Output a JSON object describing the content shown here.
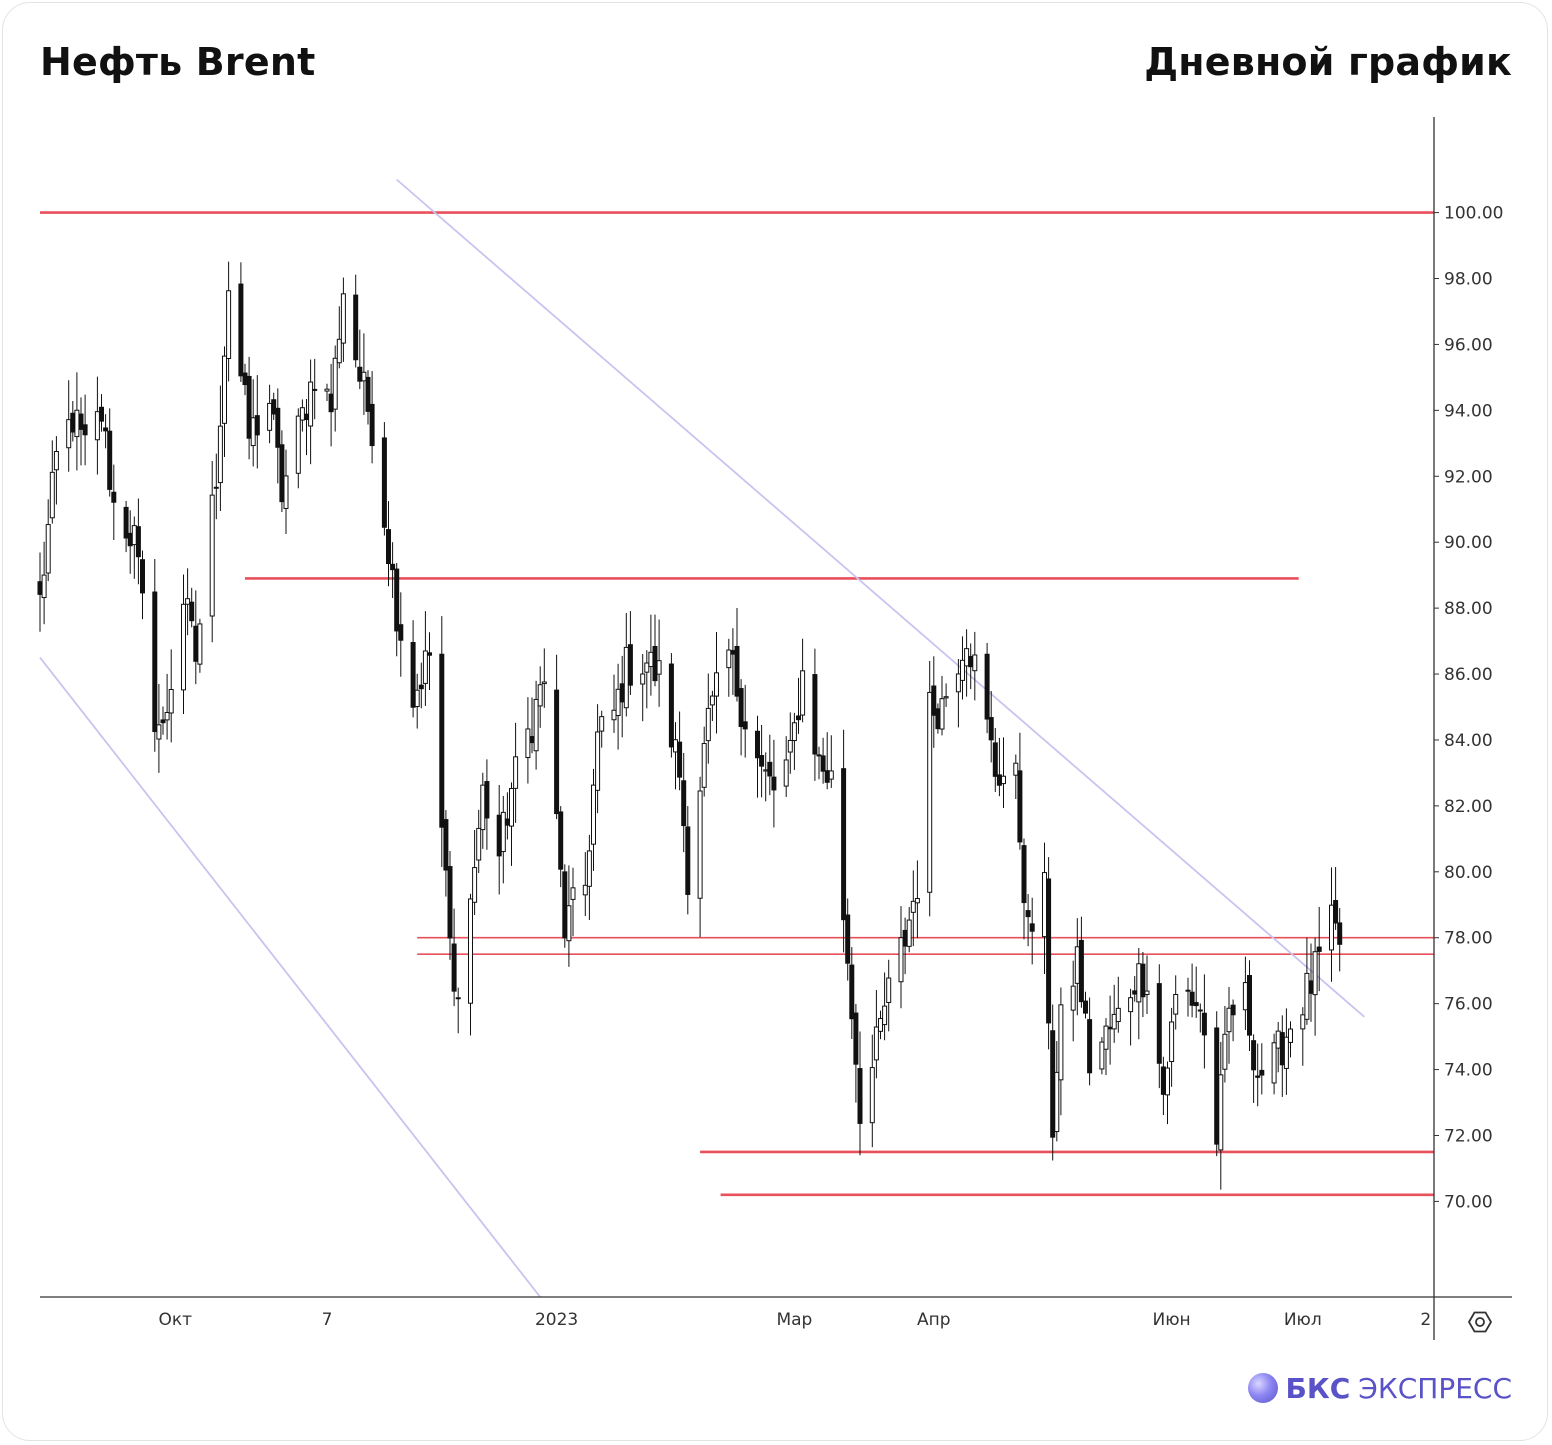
{
  "header": {
    "title_left": "Нефть Brent",
    "title_right": "Дневной график"
  },
  "logo": {
    "brand": "БКС",
    "product": "ЭКСПРЕСС",
    "icon": "bks-sphere-icon"
  },
  "settings_icon": "gear-icon",
  "colors": {
    "level": "#e8505b",
    "channel": "#c8c4f0",
    "candle": "#111111",
    "axis": "#333333",
    "brand": "#5a53c8"
  },
  "chart_data": {
    "type": "candlestick",
    "title": "Нефть Brent",
    "subtitle": "Дневной график",
    "ylim": [
      67.1,
      102.9
    ],
    "xlim": [
      "2022-08-29",
      "2023-08-04"
    ],
    "y_ticks": [
      "100.00",
      "98.00",
      "96.00",
      "94.00",
      "92.00",
      "90.00",
      "88.00",
      "86.00",
      "84.00",
      "82.00",
      "80.00",
      "78.00",
      "76.00",
      "74.00",
      "72.00",
      "70.00"
    ],
    "x_ticks": [
      {
        "label": "Окт",
        "date": "2022-10-01"
      },
      {
        "label": "7",
        "date": "2022-11-07"
      },
      {
        "label": "2023",
        "date": "2023-01-02"
      },
      {
        "label": "Мар",
        "date": "2023-03-01"
      },
      {
        "label": "Апр",
        "date": "2023-04-04"
      },
      {
        "label": "Июн",
        "date": "2023-06-01"
      },
      {
        "label": "Июл",
        "date": "2023-07-03"
      },
      {
        "label": "2",
        "date": "2023-08-02"
      }
    ],
    "levels": [
      {
        "price": 100.0,
        "from": "2022-08-29",
        "to": "2023-08-04",
        "weight": "thick"
      },
      {
        "price": 88.9,
        "from": "2022-10-18",
        "to": "2023-07-02",
        "weight": "thick"
      },
      {
        "price": 78.0,
        "from": "2022-11-29",
        "to": "2023-08-04",
        "weight": "thin"
      },
      {
        "price": 77.5,
        "from": "2022-11-29",
        "to": "2023-08-04",
        "weight": "thin"
      },
      {
        "price": 71.5,
        "from": "2023-02-06",
        "to": "2023-08-04",
        "weight": "thick"
      },
      {
        "price": 70.2,
        "from": "2023-02-11",
        "to": "2023-08-04",
        "weight": "thick"
      }
    ],
    "channel": [
      {
        "from": {
          "date": "2022-11-24",
          "price": 101.0
        },
        "to": {
          "date": "2023-07-18",
          "price": 75.6
        }
      },
      {
        "from": {
          "date": "2022-08-29",
          "price": 86.5
        },
        "to": {
          "date": "2022-12-29",
          "price": 67.1
        }
      }
    ],
    "anchors": [
      [
        "2022-08-29",
        88.2
      ],
      [
        "2022-09-02",
        92.5
      ],
      [
        "2022-09-06",
        93.8
      ],
      [
        "2022-09-09",
        92.8
      ],
      [
        "2022-09-13",
        93.9
      ],
      [
        "2022-09-16",
        91.1
      ],
      [
        "2022-09-21",
        90.1
      ],
      [
        "2022-09-26",
        84.8
      ],
      [
        "2022-09-28",
        84.2
      ],
      [
        "2022-10-03",
        88.3
      ],
      [
        "2022-10-06",
        86.5
      ],
      [
        "2022-10-11",
        92.1
      ],
      [
        "2022-10-14",
        97.8
      ],
      [
        "2022-10-19",
        93.2
      ],
      [
        "2022-10-24",
        94.3
      ],
      [
        "2022-10-27",
        91.5
      ],
      [
        "2022-11-01",
        93.8
      ],
      [
        "2022-11-04",
        95.2
      ],
      [
        "2022-11-08",
        94.1
      ],
      [
        "2022-11-11",
        97.7
      ],
      [
        "2022-11-15",
        95.0
      ],
      [
        "2022-11-18",
        93.6
      ],
      [
        "2022-11-21",
        90.8
      ],
      [
        "2022-11-24",
        88.0
      ],
      [
        "2022-11-28",
        85.3
      ],
      [
        "2022-12-02",
        86.6
      ],
      [
        "2022-12-05",
        81.3
      ],
      [
        "2022-12-08",
        76.1
      ],
      [
        "2022-12-12",
        79.1
      ],
      [
        "2022-12-15",
        82.4
      ],
      [
        "2022-12-19",
        80.5
      ],
      [
        "2022-12-22",
        82.5
      ],
      [
        "2022-12-27",
        84.6
      ],
      [
        "2022-12-30",
        85.9
      ],
      [
        "2023-01-04",
        78.3
      ],
      [
        "2023-01-09",
        79.6
      ],
      [
        "2023-01-12",
        84.0
      ],
      [
        "2023-01-16",
        84.8
      ],
      [
        "2023-01-19",
        86.2
      ],
      [
        "2023-01-24",
        86.4
      ],
      [
        "2023-01-27",
        85.9
      ],
      [
        "2023-02-01",
        83.0
      ],
      [
        "2023-02-03",
        80.0
      ],
      [
        "2023-02-08",
        84.5
      ],
      [
        "2023-02-13",
        86.6
      ],
      [
        "2023-02-16",
        85.1
      ],
      [
        "2023-02-21",
        83.0
      ],
      [
        "2023-02-24",
        82.5
      ],
      [
        "2023-02-28",
        83.4
      ],
      [
        "2023-03-03",
        86.0
      ],
      [
        "2023-03-07",
        83.3
      ],
      [
        "2023-03-10",
        82.8
      ],
      [
        "2023-03-14",
        77.4
      ],
      [
        "2023-03-17",
        72.9
      ],
      [
        "2023-03-20",
        74.0
      ],
      [
        "2023-03-23",
        75.9
      ],
      [
        "2023-03-28",
        78.0
      ],
      [
        "2023-03-31",
        79.7
      ],
      [
        "2023-04-03",
        84.9
      ],
      [
        "2023-04-06",
        85.1
      ],
      [
        "2023-04-12",
        87.3
      ],
      [
        "2023-04-14",
        86.2
      ],
      [
        "2023-04-19",
        83.1
      ],
      [
        "2023-04-24",
        82.7
      ],
      [
        "2023-04-27",
        78.1
      ],
      [
        "2023-05-01",
        79.3
      ],
      [
        "2023-05-03",
        72.3
      ],
      [
        "2023-05-05",
        75.3
      ],
      [
        "2023-05-09",
        77.4
      ],
      [
        "2023-05-12",
        74.2
      ],
      [
        "2023-05-16",
        75.0
      ],
      [
        "2023-05-19",
        75.6
      ],
      [
        "2023-05-23",
        76.8
      ],
      [
        "2023-05-26",
        76.9
      ],
      [
        "2023-05-30",
        73.3
      ],
      [
        "2023-06-02",
        76.1
      ],
      [
        "2023-06-05",
        76.3
      ],
      [
        "2023-06-08",
        75.9
      ],
      [
        "2023-06-12",
        72.0
      ],
      [
        "2023-06-15",
        75.7
      ],
      [
        "2023-06-19",
        76.1
      ],
      [
        "2023-06-22",
        73.9
      ],
      [
        "2023-06-26",
        74.2
      ],
      [
        "2023-06-30",
        75.4
      ],
      [
        "2023-07-05",
        76.6
      ],
      [
        "2023-07-10",
        78.3
      ],
      [
        "2023-07-12",
        77.8
      ]
    ]
  }
}
